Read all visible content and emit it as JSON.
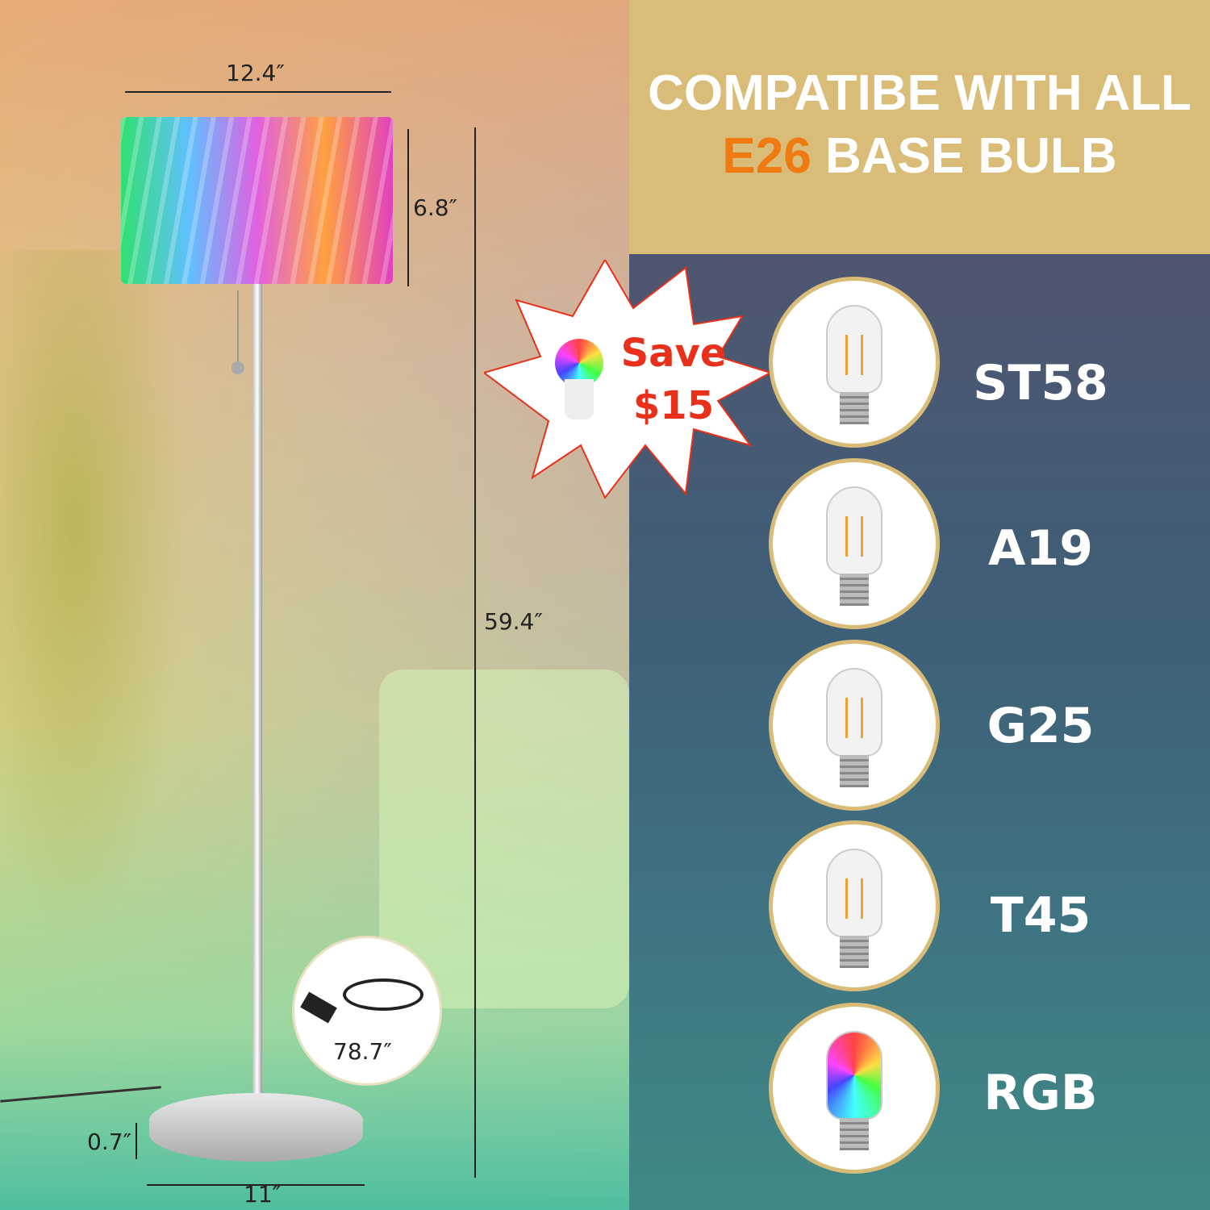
{
  "headline": {
    "line1": "COMPATIBE WITH ALL",
    "line2_accent": "E26",
    "line2_rest": "BASE BULB"
  },
  "colors": {
    "header_bg": "#d9bc78",
    "accent": "#f07a12",
    "save_red": "#e8301a"
  },
  "dimensions": {
    "shade_width": "12.4″",
    "shade_height": "6.8″",
    "total_height": "59.4″",
    "base_thickness": "0.7″",
    "base_width": "11″",
    "cord_length": "78.7″"
  },
  "promo": {
    "line1": "Save",
    "line2": "$15",
    "icon": "rgb-bulb-icon"
  },
  "bulbs": [
    {
      "label": "ST58"
    },
    {
      "label": "A19"
    },
    {
      "label": "G25"
    },
    {
      "label": "T45"
    },
    {
      "label": "RGB"
    }
  ]
}
